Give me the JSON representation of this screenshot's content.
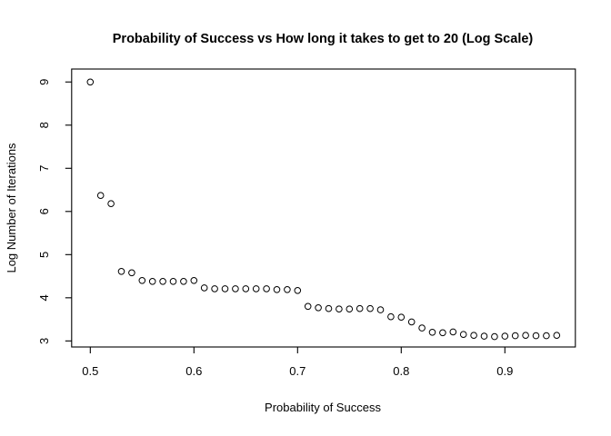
{
  "figure": {
    "background": "#ffffff",
    "foreground": "#000000"
  },
  "chart_data": {
    "type": "scatter",
    "title": "Probability of Success vs How long it takes to get to 20 (Log Scale)",
    "xlabel": "Probability of Success",
    "ylabel": "Log Number of Iterations",
    "marker": "open-circle",
    "marker_color": "#000000",
    "grid": false,
    "legend": null,
    "xlim": [
      0.482,
      0.968
    ],
    "ylim": [
      2.86,
      9.3
    ],
    "xticks": [
      "0.5",
      "0.6",
      "0.7",
      "0.8",
      "0.9"
    ],
    "xtick_values": [
      0.5,
      0.6,
      0.7,
      0.8,
      0.9
    ],
    "yticks": [
      "3",
      "4",
      "5",
      "6",
      "7",
      "8",
      "9"
    ],
    "ytick_values": [
      3,
      4,
      5,
      6,
      7,
      8,
      9
    ],
    "x": [
      0.5,
      0.51,
      0.52,
      0.53,
      0.54,
      0.55,
      0.56,
      0.57,
      0.58,
      0.59,
      0.6,
      0.61,
      0.62,
      0.63,
      0.64,
      0.65,
      0.66,
      0.67,
      0.68,
      0.69,
      0.7,
      0.71,
      0.72,
      0.73,
      0.74,
      0.75,
      0.76,
      0.77,
      0.78,
      0.79,
      0.8,
      0.81,
      0.82,
      0.83,
      0.84,
      0.85,
      0.86,
      0.87,
      0.88,
      0.89,
      0.9,
      0.91,
      0.92,
      0.93,
      0.94,
      0.95
    ],
    "y": [
      9.0,
      6.37,
      6.18,
      4.61,
      4.58,
      4.4,
      4.38,
      4.38,
      4.38,
      4.38,
      4.4,
      4.23,
      4.21,
      4.21,
      4.21,
      4.21,
      4.21,
      4.21,
      4.19,
      4.19,
      4.17,
      3.8,
      3.77,
      3.75,
      3.74,
      3.74,
      3.75,
      3.75,
      3.72,
      3.56,
      3.55,
      3.44,
      3.3,
      3.2,
      3.19,
      3.21,
      3.15,
      3.13,
      3.11,
      3.1,
      3.11,
      3.12,
      3.13,
      3.12,
      3.12,
      3.13
    ]
  },
  "layout_hints": {
    "legend_position": "none",
    "point_style": "hollow circle, black stroke, white interior"
  }
}
